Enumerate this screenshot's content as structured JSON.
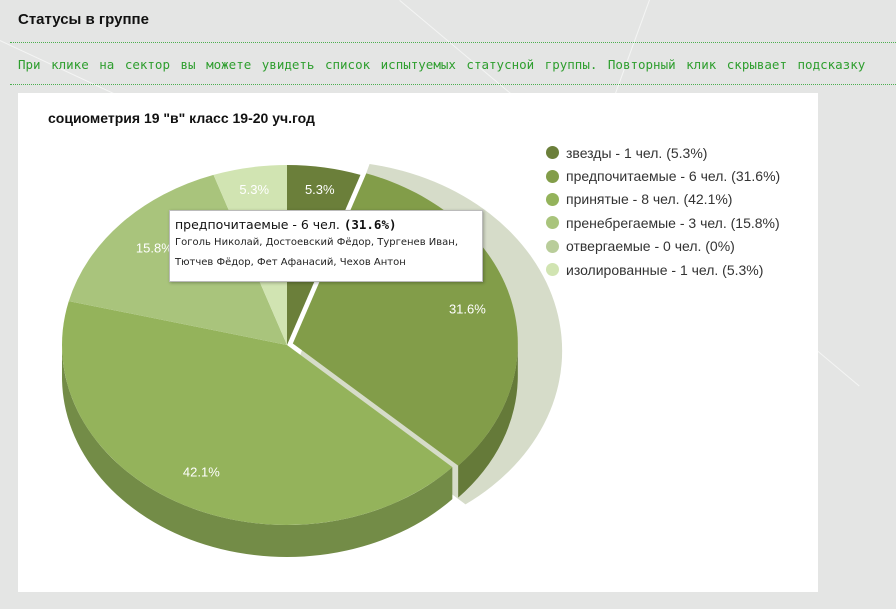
{
  "page": {
    "title": "Статусы в группе",
    "hint": "При клике на сектор вы можете увидеть список испытуемых статусной группы. Повторный клик скрывает подсказку"
  },
  "chart_data": {
    "type": "pie",
    "title": "социометрия 19 \"в\" класс 19-20 уч.год",
    "style": "3d",
    "legend_position": "right",
    "slices": [
      {
        "name": "звезды",
        "count": 1,
        "percent": 5.3,
        "legend": "звезды - 1 чел. (5.3%)",
        "label": "5.3%",
        "color": "#6b7f3a"
      },
      {
        "name": "предпочитаемые",
        "count": 6,
        "percent": 31.6,
        "legend": "предпочитаемые - 6 чел. (31.6%)",
        "label": "31.6%",
        "color": "#829d49",
        "selected": true
      },
      {
        "name": "принятые",
        "count": 8,
        "percent": 42.1,
        "legend": "принятые - 8 чел. (42.1%)",
        "label": "42.1%",
        "color": "#94b35b"
      },
      {
        "name": "пренебрегаемые",
        "count": 3,
        "percent": 15.8,
        "legend": "пренебрегаемые - 3 чел. (15.8%)",
        "label": "15.8%",
        "color": "#a9c47c"
      },
      {
        "name": "отвергаемые",
        "count": 0,
        "percent": 0,
        "legend": "отвергаемые - 0 чел. (0%)",
        "label": "",
        "color": "#b9cd9a"
      },
      {
        "name": "изолированные",
        "count": 1,
        "percent": 5.3,
        "legend": "изолированные - 1 чел. (5.3%)",
        "label": "5.3%",
        "color": "#d1e4b2"
      }
    ]
  },
  "tooltip": {
    "head": "предпочитаемые - 6 чел.",
    "percent": "(31.6%)",
    "names_line1": "Гоголь Николай, Достоевский Фёдор, Тургенев Иван,",
    "names_line2": "Тютчев Фёдор, Фет Афанасий, Чехов Антон"
  }
}
